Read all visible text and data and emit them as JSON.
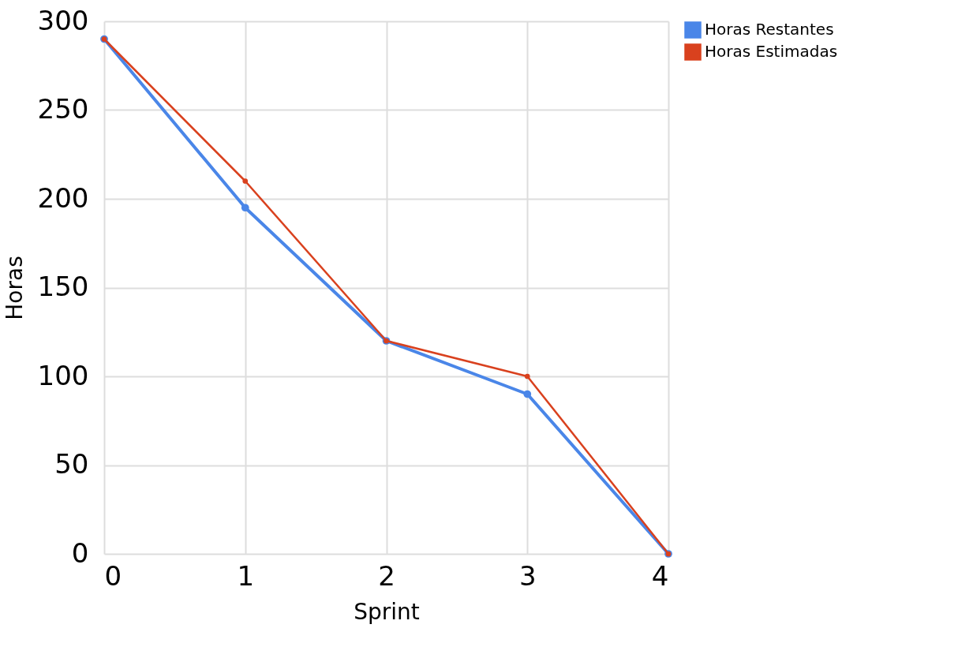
{
  "chart_data": {
    "type": "line",
    "xlabel": "Sprint",
    "ylabel": "Horas",
    "x": [
      0,
      1,
      2,
      3,
      4
    ],
    "series": [
      {
        "name": "Horas Restantes",
        "color": "#4a86e8",
        "values": [
          290,
          195,
          120,
          90,
          0
        ]
      },
      {
        "name": "Horas Estimadas",
        "color": "#d9411e",
        "values": [
          290,
          210,
          120,
          100,
          0
        ]
      }
    ],
    "xlim": [
      0,
      4
    ],
    "xticks": [
      0,
      1,
      2,
      3,
      4
    ],
    "ylim": [
      0,
      300
    ],
    "yticks": [
      0,
      50,
      100,
      150,
      200,
      250,
      300
    ],
    "grid": true,
    "legend": "right",
    "marker": "circle",
    "line_style": "solid"
  }
}
